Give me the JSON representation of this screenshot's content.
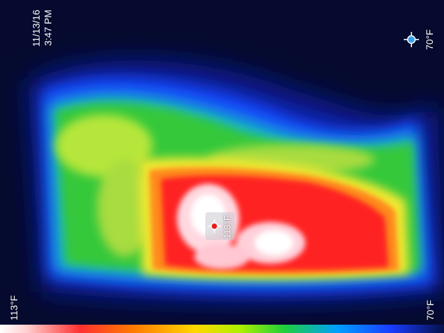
{
  "capture": {
    "date": "11/13/16",
    "time": "3:47 PM"
  },
  "readouts": {
    "spot_temp": "113°F",
    "max_temp": "113°F",
    "min_temp": "70°F",
    "target_temp": "70°F"
  },
  "icons": {
    "spot_marker": "crosshair-icon",
    "cold_target": "crosshair-icon"
  },
  "colors": {
    "background": "#050a2e",
    "hot": "#ffffff",
    "warm": "#ff2020",
    "mid": "#ffd800",
    "cool": "#1fcf3a",
    "cold": "#1a3cff"
  }
}
